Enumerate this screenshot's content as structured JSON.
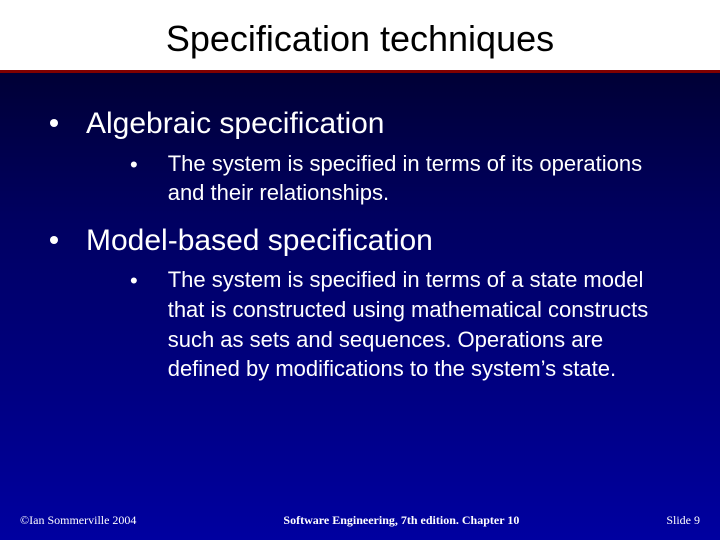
{
  "title": "Specification techniques",
  "items": [
    {
      "label": "Algebraic specification",
      "sub": "The system is specified in terms of its operations and their relationships."
    },
    {
      "label": "Model-based specification",
      "sub": "The system is specified in terms of a state model that is constructed using mathematical constructs such as sets and sequences. Operations are defined by modifications to the system’s state."
    }
  ],
  "footer": {
    "left": "©Ian Sommerville 2004",
    "center": "Software Engineering, 7th edition. Chapter 10",
    "right_label": "Slide",
    "right_num": "9"
  },
  "style": {
    "title_rule_color": "#800000",
    "bg_gradient_top": "#000020",
    "bg_gradient_mid": "#000060",
    "bg_gradient_bottom": "#0000a0",
    "text_color": "#ffffff",
    "title_fontsize": 36,
    "l1_fontsize": 30,
    "l2_fontsize": 22,
    "footer_fontsize": 12
  }
}
